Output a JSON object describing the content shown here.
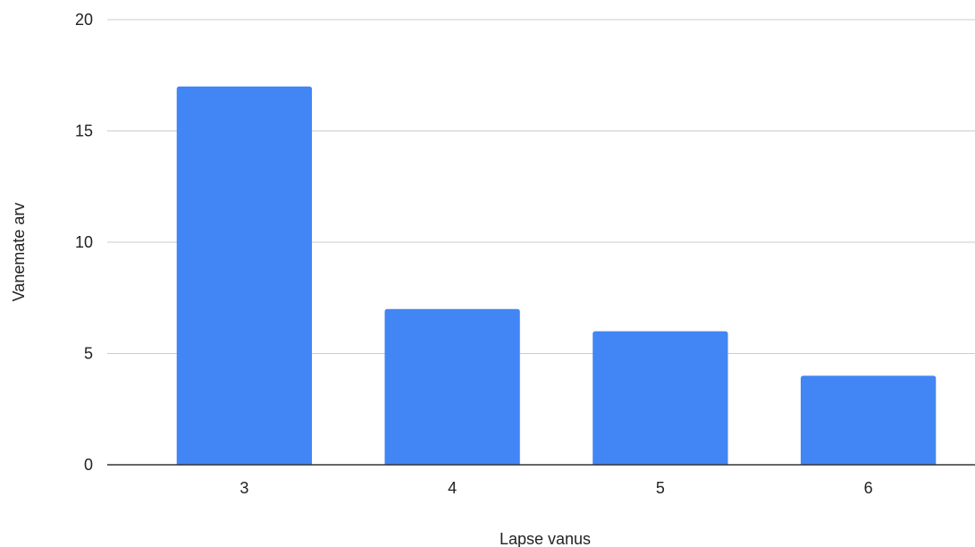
{
  "chart_data": {
    "type": "bar",
    "title": "",
    "xlabel": "Lapse vanus",
    "ylabel": "Vanemate arv",
    "categories": [
      "3",
      "4",
      "5",
      "6"
    ],
    "series": [
      {
        "values": [
          17,
          7,
          6,
          4
        ]
      }
    ],
    "ylim": [
      0,
      20
    ],
    "yticks": [
      "0",
      "5",
      "10",
      "15",
      "20"
    ],
    "grid": true,
    "legend": "none",
    "colors": {
      "bar": "#4285F4",
      "grid": "#CCCCCC",
      "baseline": "#333333",
      "text": "#222222"
    }
  }
}
